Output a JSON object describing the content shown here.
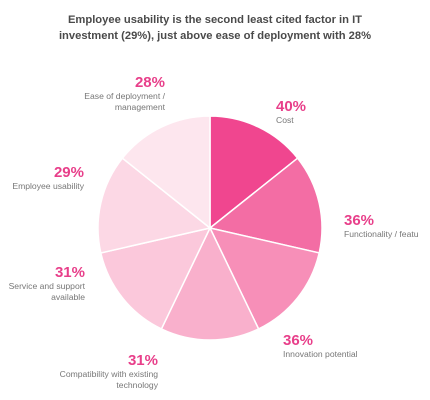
{
  "title_lines": [
    "Employee usability is the second least cited factor in IT",
    "investment (29%), just above ease of deployment with 28%"
  ],
  "chart_data": {
    "type": "pie",
    "title": "Employee usability is the second least cited factor in IT investment (29%), just above ease of deployment with 28%",
    "slices": [
      {
        "pct_label": "40%",
        "value": 40,
        "label_lines": [
          "Cost"
        ],
        "color": "#f0468f"
      },
      {
        "pct_label": "36%",
        "value": 36,
        "label_lines": [
          "Functionality / featu"
        ],
        "color": "#f36da4"
      },
      {
        "pct_label": "36%",
        "value": 36,
        "label_lines": [
          "Innovation potential"
        ],
        "color": "#f78fb8"
      },
      {
        "pct_label": "31%",
        "value": 31,
        "label_lines": [
          "Compatibility with existing",
          "technology"
        ],
        "color": "#f9b0cc"
      },
      {
        "pct_label": "31%",
        "value": 31,
        "label_lines": [
          "Service and support",
          "available"
        ],
        "color": "#fbc8db"
      },
      {
        "pct_label": "29%",
        "value": 29,
        "label_lines": [
          "Employee usability"
        ],
        "color": "#fcd8e5"
      },
      {
        "pct_label": "28%",
        "value": 28,
        "label_lines": [
          "Ease of deployment /",
          "management"
        ],
        "color": "#fde6ee"
      }
    ]
  }
}
